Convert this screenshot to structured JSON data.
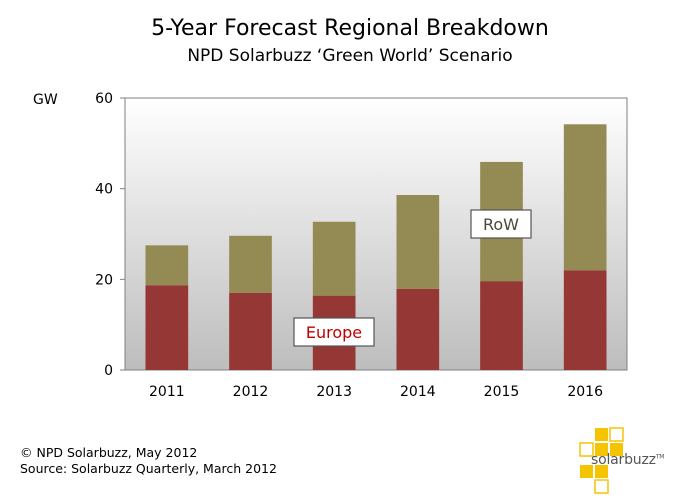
{
  "chart_data": {
    "type": "bar",
    "stacked": true,
    "title": "5-Year Forecast Regional Breakdown",
    "subtitle": "NPD Solarbuzz ‘Green World’ Scenario",
    "ylabel": "GW",
    "xlabel": "",
    "ylim": [
      0,
      60
    ],
    "yticks": [
      0,
      20,
      40,
      60
    ],
    "categories": [
      "2011",
      "2012",
      "2013",
      "2014",
      "2015",
      "2016"
    ],
    "series": [
      {
        "name": "Europe",
        "values": [
          18.7,
          17.0,
          16.4,
          17.9,
          19.6,
          22.0
        ],
        "color": "#953735"
      },
      {
        "name": "RoW",
        "values": [
          8.8,
          12.6,
          16.3,
          20.7,
          26.3,
          32.2
        ],
        "color": "#948a54"
      }
    ],
    "annotations": [
      {
        "text": "Europe",
        "color": "#c00000"
      },
      {
        "text": "RoW",
        "color": "#4a4a3a"
      }
    ]
  },
  "footer": {
    "copyright": "© NPD Solarbuzz, May 2012",
    "source": "Source: Solarbuzz Quarterly, March 2012"
  },
  "logo": {
    "text": "solarbuzz",
    "mark": "TM",
    "color": "#f5c400"
  }
}
